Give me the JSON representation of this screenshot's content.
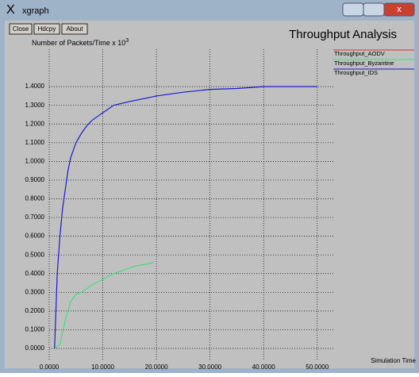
{
  "window": {
    "title": "xgraph",
    "buttons": [
      "Close",
      "Hdcpy",
      "About"
    ]
  },
  "chart_data": {
    "type": "line",
    "title": "Throughput Analysis",
    "y_label": "Number of Packets/Time x 10",
    "y_label_exponent": "3",
    "x_label": "Simulation Time",
    "xlim": [
      0,
      53
    ],
    "ylim": [
      0,
      1.6
    ],
    "xticks": [
      {
        "value": 0,
        "label": "0.0000"
      },
      {
        "value": 10,
        "label": "10.0000"
      },
      {
        "value": 20,
        "label": "20.0000"
      },
      {
        "value": 30,
        "label": "30.0000"
      },
      {
        "value": 40,
        "label": "40.0000"
      },
      {
        "value": 50,
        "label": "50.0000"
      }
    ],
    "yticks": [
      {
        "value": 0,
        "label": "0.0000"
      },
      {
        "value": 0.1,
        "label": "0.1000"
      },
      {
        "value": 0.2,
        "label": "0.2000"
      },
      {
        "value": 0.3,
        "label": "0.3000"
      },
      {
        "value": 0.4,
        "label": "0.4000"
      },
      {
        "value": 0.5,
        "label": "0.5000"
      },
      {
        "value": 0.6,
        "label": "0.6000"
      },
      {
        "value": 0.7,
        "label": "0.7000"
      },
      {
        "value": 0.8,
        "label": "0.8000"
      },
      {
        "value": 0.9,
        "label": "0.9000"
      },
      {
        "value": 1.0,
        "label": "1.0000"
      },
      {
        "value": 1.1,
        "label": "1.1000"
      },
      {
        "value": 1.2,
        "label": "1.2000"
      },
      {
        "value": 1.3,
        "label": "1.3000"
      },
      {
        "value": 1.4,
        "label": "1.4000"
      }
    ],
    "grid": true,
    "legend": "right",
    "series": [
      {
        "name": "Throughput_AODV",
        "color": "#e03030",
        "x": [],
        "values": []
      },
      {
        "name": "Throughput_Byzantine",
        "color": "#40e080",
        "x": [
          1,
          2,
          3,
          4,
          5,
          6,
          8,
          10,
          12,
          14,
          16,
          18,
          19.5
        ],
        "values": [
          0.0,
          0.02,
          0.15,
          0.25,
          0.29,
          0.3,
          0.34,
          0.37,
          0.4,
          0.42,
          0.44,
          0.45,
          0.46
        ]
      },
      {
        "name": "Throughput_IDS",
        "color": "#1a1ad0",
        "x": [
          1,
          1.5,
          2,
          2.5,
          3,
          3.5,
          4,
          5,
          6,
          7,
          8,
          10,
          12,
          15,
          20,
          25,
          30,
          35,
          40,
          45,
          50
        ],
        "values": [
          0.0,
          0.4,
          0.6,
          0.75,
          0.85,
          0.95,
          1.02,
          1.1,
          1.15,
          1.19,
          1.22,
          1.26,
          1.3,
          1.32,
          1.35,
          1.37,
          1.385,
          1.39,
          1.4,
          1.4,
          1.4
        ]
      }
    ]
  }
}
